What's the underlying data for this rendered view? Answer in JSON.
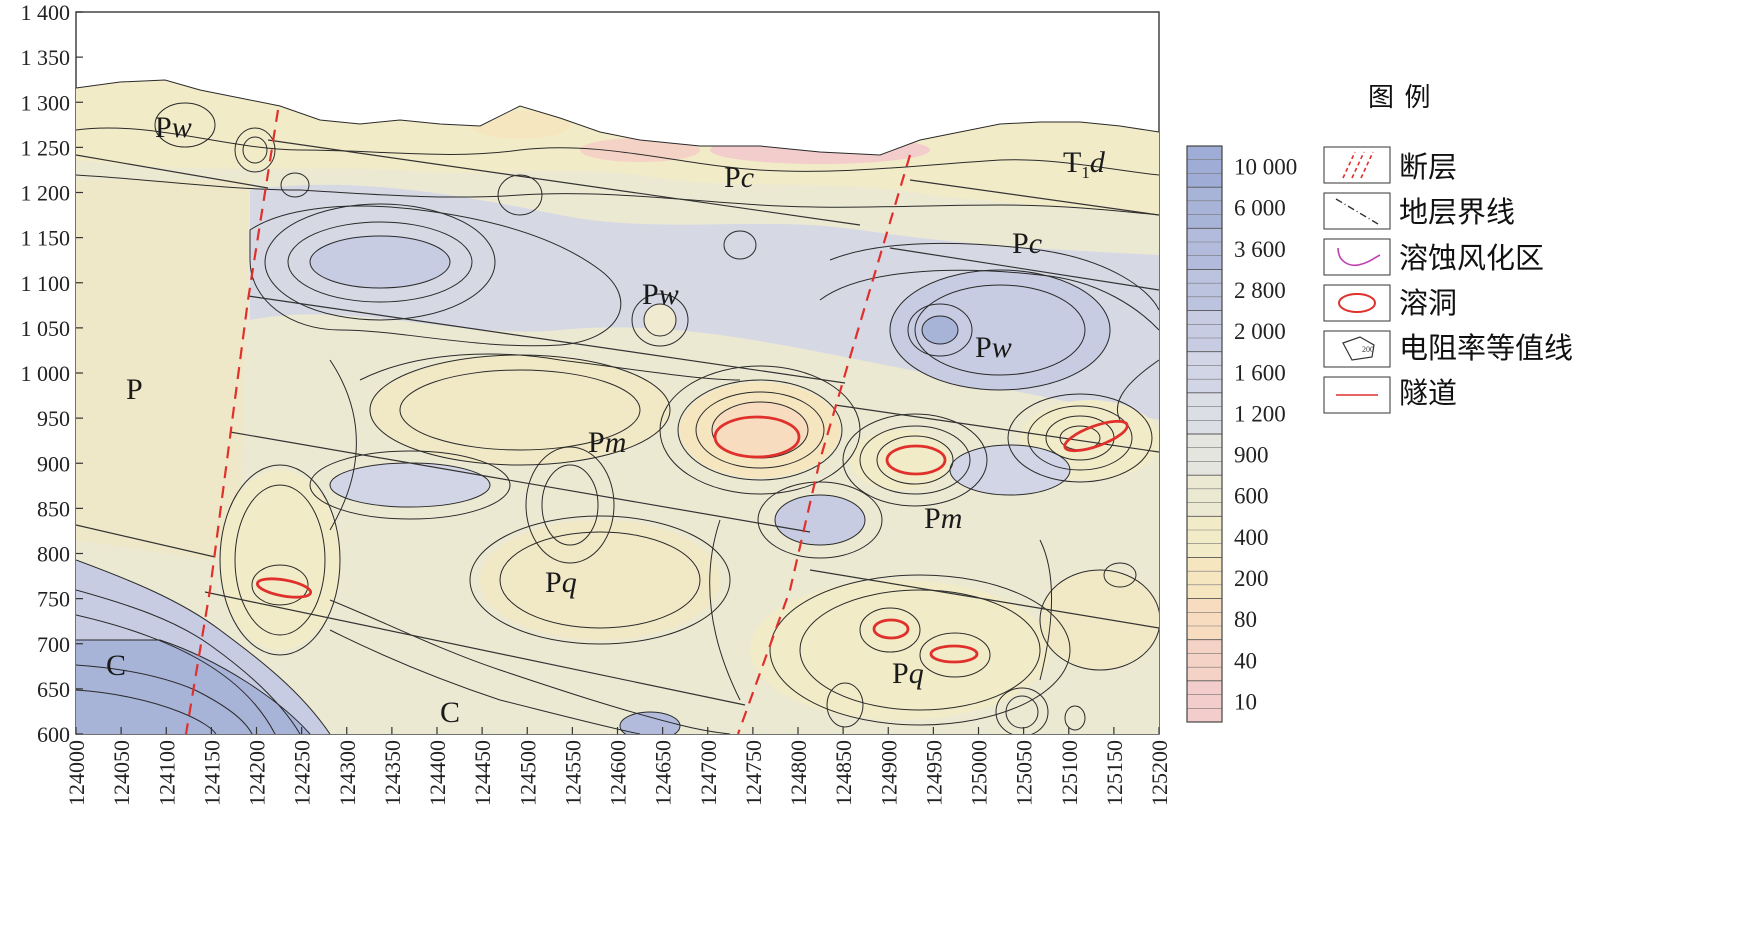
{
  "y_axis": {
    "ticks": [
      "1 400",
      "1 350",
      "1 300",
      "1 250",
      "1 200",
      "1 150",
      "1 100",
      "1 050",
      "1 000",
      "950",
      "900",
      "850",
      "800",
      "750",
      "700",
      "650",
      "600"
    ]
  },
  "x_axis": {
    "ticks": [
      "124000",
      "124050",
      "124100",
      "124150",
      "124200",
      "124250",
      "124300",
      "124350",
      "124400",
      "124450",
      "124500",
      "124550",
      "124600",
      "124650",
      "124700",
      "124750",
      "124800",
      "124850",
      "124900",
      "124950",
      "125000",
      "125050",
      "125100",
      "125150",
      "125200"
    ]
  },
  "strata_labels": [
    {
      "text": "Pw",
      "name": "Pw-label-1"
    },
    {
      "text": "Pc",
      "name": "Pc-label-1"
    },
    {
      "text": "T1d",
      "name": "T1d-label"
    },
    {
      "text": "Pc",
      "name": "Pc-label-2"
    },
    {
      "text": "Pw",
      "name": "Pw-label-2"
    },
    {
      "text": "Pw",
      "name": "Pw-label-3"
    },
    {
      "text": "P",
      "name": "P-label"
    },
    {
      "text": "Pm",
      "name": "Pm-label-1"
    },
    {
      "text": "Pm",
      "name": "Pm-label-2"
    },
    {
      "text": "Pq",
      "name": "Pq-label-1"
    },
    {
      "text": "Pq",
      "name": "Pq-label-2"
    },
    {
      "text": "C",
      "name": "C-label-1"
    },
    {
      "text": "C",
      "name": "C-label-2"
    }
  ],
  "color_scale": {
    "values": [
      "10 000",
      "6 000",
      "3 600",
      "2 800",
      "2 000",
      "1 600",
      "1 200",
      "900",
      "600",
      "400",
      "200",
      "80",
      "40",
      "10"
    ],
    "colors": [
      "#9facd6",
      "#a8b3d8",
      "#b2bbdc",
      "#bcc3df",
      "#c7cce2",
      "#d2d5e5",
      "#dcdee6",
      "#e5e5df",
      "#ece9d3",
      "#f2ebc8",
      "#f6e6c0",
      "#f7dcc0",
      "#f5d2c6",
      "#f3cccc"
    ]
  },
  "legend": {
    "title": "图    例",
    "items": [
      {
        "label": "断层",
        "symbol": "fault"
      },
      {
        "label": "地层界线",
        "symbol": "stratum-boundary"
      },
      {
        "label": "溶蚀风化区",
        "symbol": "weathering-zone"
      },
      {
        "label": "溶洞",
        "symbol": "karst-cave"
      },
      {
        "label": "电阻率等值线",
        "symbol": "resistivity-contour"
      },
      {
        "label": "隧道",
        "symbol": "tunnel"
      }
    ],
    "contour_sample_label": "200"
  },
  "colors": {
    "fault": "#e0302c",
    "cave": "#e0302c",
    "weathering": "#c040b0",
    "contour": "#2a2a2a",
    "boundary": "#333333",
    "low_resistivity": "#f3cccc",
    "high_resistivity": "#9facd6"
  }
}
